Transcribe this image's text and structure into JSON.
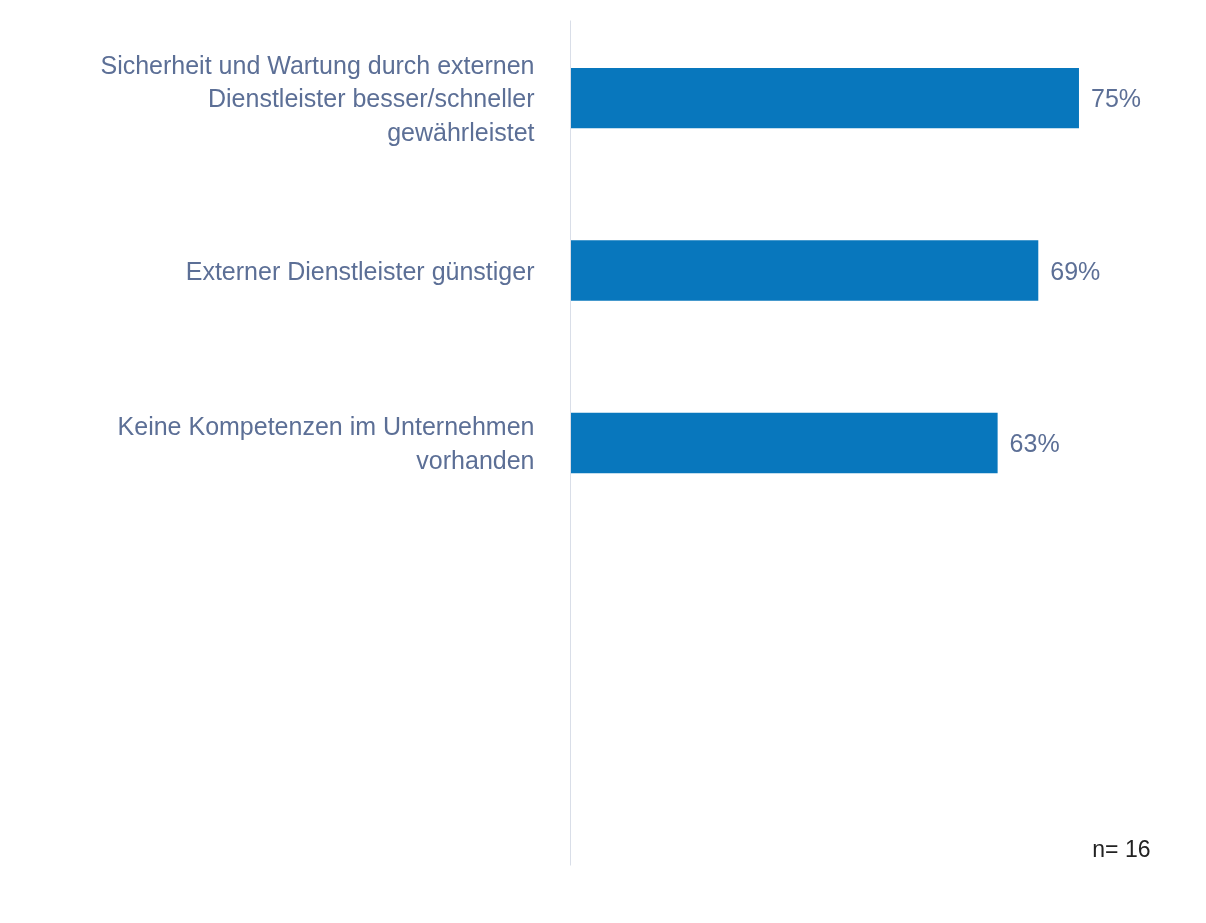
{
  "chart_data": {
    "type": "bar",
    "orientation": "horizontal",
    "categories": [
      "Sicherheit und Wartung durch externen Dienstleister besser/schneller gewährleistet",
      "Externer Dienstleister günstiger",
      "Keine Kompetenzen im Unternehmen vorhanden"
    ],
    "values": [
      75,
      69,
      63
    ],
    "value_labels": [
      "75%",
      "69%",
      "63%"
    ],
    "color": "#0877bd",
    "tick_labels": "y",
    "grid": false,
    "annotations": [
      "n= 16"
    ]
  }
}
